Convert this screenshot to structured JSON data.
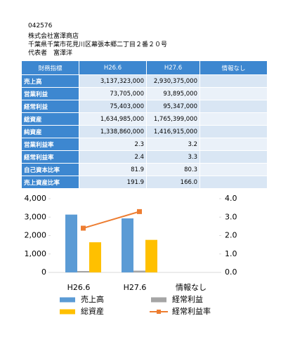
{
  "header": {
    "code": "042576",
    "company": "株式会社富澤商店",
    "address": "千葉県千葉市花見川区幕張本郷二丁目２番２０号",
    "representative": "代表者　富澤洋"
  },
  "table": {
    "columns": [
      "財務指標",
      "H26.6",
      "H27.6",
      "情報なし"
    ],
    "rows": [
      [
        "売上高",
        "3,137,323,000",
        "2,930,375,000"
      ],
      [
        "営業利益",
        "73,705,000",
        "93,895,000"
      ],
      [
        "経常利益",
        "75,403,000",
        "95,347,000"
      ],
      [
        "総資産",
        "1,634,985,000",
        "1,765,399,000"
      ],
      [
        "純資産",
        "1,338,860,000",
        "1,416,915,000"
      ],
      [
        "営業利益率",
        "2.3",
        "3.2"
      ],
      [
        "経常利益率",
        "2.4",
        "3.3"
      ],
      [
        "自己資本比率",
        "81.9",
        "80.3"
      ],
      [
        "売上資産比率",
        "191.9",
        "166.0"
      ]
    ]
  },
  "chart_data": {
    "type": "bar",
    "categories": [
      "H26.6",
      "H27.6",
      "情報なし"
    ],
    "series": [
      {
        "name": "売上高",
        "color": "#5b9bd5",
        "values": [
          3137.323,
          2930.375,
          null
        ]
      },
      {
        "name": "経常利益",
        "color": "#a5a5a5",
        "values": [
          75.403,
          95.347,
          null
        ]
      },
      {
        "name": "総資産",
        "color": "#ffc000",
        "values": [
          1634.985,
          1765.399,
          null
        ]
      },
      {
        "name": "経常利益率",
        "type": "line",
        "axis": "y2",
        "color": "#ed7d31",
        "values": [
          2.4,
          3.3,
          null
        ]
      }
    ],
    "ylim": [
      0,
      4000
    ],
    "yticks": [
      0,
      {
        "value": 1000,
        "label": "1,000"
      },
      {
        "value": 2000,
        "label": "2,000"
      },
      {
        "value": 3000,
        "label": "3,000"
      },
      {
        "value": 4000,
        "label": "4,000"
      }
    ],
    "y2lim": [
      0,
      4
    ],
    "y2ticks": [
      {
        "value": 0,
        "label": "0.0"
      },
      {
        "value": 1,
        "label": "1.0"
      },
      {
        "value": 2,
        "label": "2.0"
      },
      {
        "value": 3,
        "label": "3.0"
      },
      {
        "value": 4,
        "label": "4.0"
      }
    ]
  }
}
